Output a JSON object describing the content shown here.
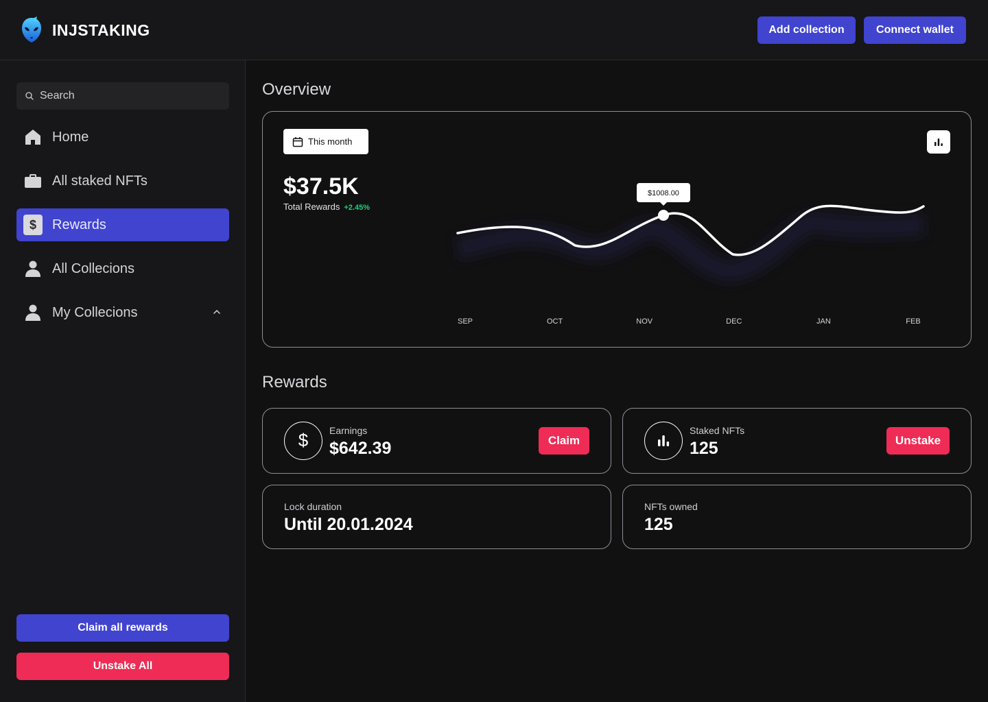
{
  "header": {
    "brand": "INJSTAKING",
    "add_collection": "Add collection",
    "connect_wallet": "Connect wallet"
  },
  "sidebar": {
    "search_placeholder": "Search",
    "items": [
      {
        "label": "Home",
        "icon": "home-icon"
      },
      {
        "label": "All staked NFTs",
        "icon": "briefcase-icon"
      },
      {
        "label": "Rewards",
        "icon": "dollar-icon",
        "active": true
      },
      {
        "label": "All Collecions",
        "icon": "user-icon"
      },
      {
        "label": "My Collecions",
        "icon": "user-icon",
        "expandable": true
      }
    ],
    "claim_all": "Claim all rewards",
    "unstake_all": "Unstake All"
  },
  "overview": {
    "title": "Overview",
    "period": "This month",
    "total_value": "$37.5K",
    "total_label": "Total Rewards",
    "total_change": "+2.45%",
    "tooltip": "$1008.00"
  },
  "chart_data": {
    "type": "line",
    "categories": [
      "SEP",
      "OCT",
      "NOV",
      "DEC",
      "JAN",
      "FEB"
    ],
    "highlight": {
      "category": "NOV",
      "label": "$1008.00"
    }
  },
  "rewards": {
    "title": "Rewards",
    "earnings": {
      "label": "Earnings",
      "value": "$642.39",
      "button": "Claim"
    },
    "staked": {
      "label": "Staked NFTs",
      "value": "125",
      "button": "Unstake"
    },
    "lock": {
      "label": "Lock duration",
      "value": "Until 20.01.2024"
    },
    "owned": {
      "label": "NFTs owned",
      "value": "125"
    }
  },
  "colors": {
    "accent": "#4044cf",
    "danger": "#ee2c55",
    "positive": "#1fd17a",
    "background": "#121112"
  }
}
